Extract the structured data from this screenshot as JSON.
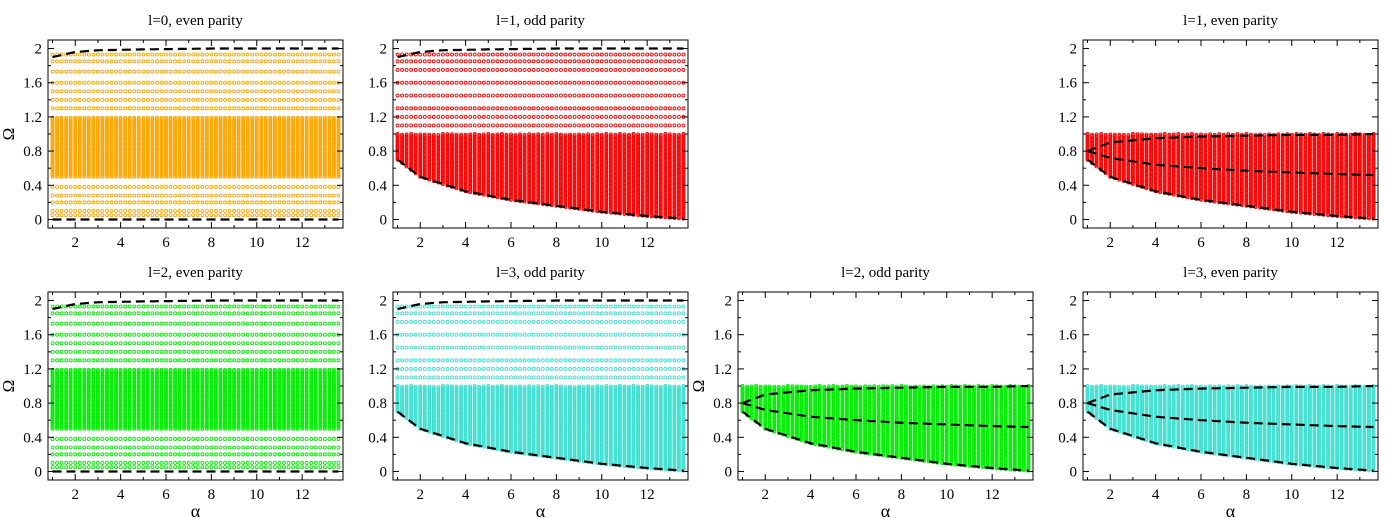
{
  "chart_data": [
    {
      "type": "scatter",
      "title": "l=0, even parity",
      "xlabel": "",
      "ylabel": "Ω",
      "xlim": [
        0.8,
        13.8
      ],
      "ylim": [
        -0.1,
        2.1
      ],
      "xticks": [
        2,
        4,
        6,
        8,
        10,
        12
      ],
      "yticks": [
        0,
        0.4,
        0.8,
        1.2,
        1.6,
        2
      ],
      "yticklabels": [
        "0",
        "0.4",
        "0.8",
        "1.2",
        "1.6",
        "2"
      ],
      "marker_color": "#FFA500",
      "dense_band": {
        "low": 0.5,
        "high": 1.2
      },
      "continuum_levels": [
        0.05,
        0.1,
        0.2,
        0.28,
        0.38,
        1.3,
        1.4,
        1.5,
        1.6,
        1.73,
        1.85,
        1.93
      ],
      "boundary_curves": [
        {
          "style": "dashed",
          "x": [
            1,
            2,
            3,
            5,
            8,
            13.6
          ],
          "y": [
            1.9,
            1.96,
            1.98,
            1.99,
            2.0,
            2.0
          ]
        },
        {
          "style": "dashed",
          "x": [
            1,
            13.6
          ],
          "y": [
            0.0,
            0.0
          ]
        }
      ]
    },
    {
      "type": "scatter",
      "title": "l=1, odd parity",
      "xlabel": "",
      "ylabel": "",
      "xlim": [
        0.8,
        13.8
      ],
      "ylim": [
        -0.1,
        2.1
      ],
      "xticks": [
        2,
        4,
        6,
        8,
        10,
        12
      ],
      "yticks": [
        0,
        0.4,
        0.8,
        1.2,
        1.6,
        2
      ],
      "yticklabels": [
        "0",
        "0.4",
        "0.8",
        "1.2",
        "1.6",
        "2"
      ],
      "marker_color": "#FF0000",
      "dense_band": {
        "low": "lower_curve",
        "high": 1.0
      },
      "continuum_levels": [
        1.1,
        1.2,
        1.3,
        1.45,
        1.6,
        1.75,
        1.85,
        1.93
      ],
      "boundary_curves": [
        {
          "style": "dashed",
          "x": [
            1,
            2,
            3,
            5,
            8,
            13.6
          ],
          "y": [
            1.9,
            1.96,
            1.98,
            1.99,
            2.0,
            2.0
          ]
        },
        {
          "style": "dashed",
          "x": [
            1,
            2,
            4,
            6,
            8,
            10,
            12,
            13.6
          ],
          "y": [
            0.7,
            0.5,
            0.33,
            0.23,
            0.16,
            0.09,
            0.04,
            0.01
          ]
        }
      ]
    },
    {
      "type": "scatter",
      "title": "l=1, even parity",
      "xlabel": "",
      "ylabel": "",
      "xlim": [
        0.8,
        13.8
      ],
      "ylim": [
        -0.1,
        2.1
      ],
      "xticks": [
        2,
        4,
        6,
        8,
        10,
        12
      ],
      "yticks": [
        0,
        0.4,
        0.8,
        1.2,
        1.6,
        2
      ],
      "yticklabels": [
        "0",
        "0.4",
        "0.8",
        "1.2",
        "1.6",
        "2"
      ],
      "marker_color": "#FF0000",
      "dense_band": {
        "low": "lower_curve",
        "high": 1.0
      },
      "continuum_levels": [],
      "boundary_curves": [
        {
          "style": "dashed",
          "x": [
            1,
            2,
            4,
            6,
            8,
            10,
            12,
            13.6
          ],
          "y": [
            0.8,
            0.9,
            0.95,
            0.97,
            0.98,
            0.99,
            0.99,
            1.0
          ]
        },
        {
          "style": "dashed",
          "x": [
            1,
            2,
            4,
            6,
            8,
            10,
            12,
            13.6
          ],
          "y": [
            0.8,
            0.72,
            0.64,
            0.6,
            0.57,
            0.55,
            0.53,
            0.52
          ]
        },
        {
          "style": "dashed",
          "x": [
            1,
            2,
            4,
            6,
            8,
            10,
            12,
            13.6
          ],
          "y": [
            0.7,
            0.5,
            0.33,
            0.23,
            0.16,
            0.09,
            0.04,
            0.01
          ]
        }
      ]
    },
    {
      "type": "scatter",
      "title": "l=2, even parity",
      "xlabel": "α",
      "ylabel": "Ω",
      "xlim": [
        0.8,
        13.8
      ],
      "ylim": [
        -0.1,
        2.1
      ],
      "xticks": [
        2,
        4,
        6,
        8,
        10,
        12
      ],
      "yticks": [
        0,
        0.4,
        0.8,
        1.2,
        1.6,
        2
      ],
      "yticklabels": [
        "0",
        "0.4",
        "0.8",
        "1.2",
        "1.6",
        "2"
      ],
      "marker_color": "#00EE00",
      "dense_band": {
        "low": 0.5,
        "high": 1.2
      },
      "continuum_levels": [
        0.05,
        0.1,
        0.2,
        0.28,
        0.38,
        1.3,
        1.4,
        1.5,
        1.6,
        1.73,
        1.85,
        1.93
      ],
      "boundary_curves": [
        {
          "style": "dashed",
          "x": [
            1,
            2,
            3,
            5,
            8,
            13.6
          ],
          "y": [
            1.9,
            1.96,
            1.98,
            1.99,
            2.0,
            2.0
          ]
        },
        {
          "style": "dashed",
          "x": [
            1,
            13.6
          ],
          "y": [
            0.0,
            0.0
          ]
        }
      ]
    },
    {
      "type": "scatter",
      "title": "l=3, odd parity",
      "xlabel": "α",
      "ylabel": "",
      "xlim": [
        0.8,
        13.8
      ],
      "ylim": [
        -0.1,
        2.1
      ],
      "xticks": [
        2,
        4,
        6,
        8,
        10,
        12
      ],
      "yticks": [
        0,
        0.4,
        0.8,
        1.2,
        1.6,
        2
      ],
      "yticklabels": [
        "0",
        "0.4",
        "0.8",
        "1.2",
        "1.6",
        "2"
      ],
      "marker_color": "#40E0D0",
      "dense_band": {
        "low": "lower_curve",
        "high": 1.0
      },
      "continuum_levels": [
        1.1,
        1.2,
        1.3,
        1.45,
        1.6,
        1.75,
        1.85,
        1.93
      ],
      "boundary_curves": [
        {
          "style": "dashed",
          "x": [
            1,
            2,
            3,
            5,
            8,
            13.6
          ],
          "y": [
            1.9,
            1.96,
            1.98,
            1.99,
            2.0,
            2.0
          ]
        },
        {
          "style": "dashed",
          "x": [
            1,
            2,
            4,
            6,
            8,
            10,
            12,
            13.6
          ],
          "y": [
            0.7,
            0.5,
            0.33,
            0.23,
            0.16,
            0.09,
            0.04,
            0.01
          ]
        }
      ]
    },
    {
      "type": "scatter",
      "title": "l=2, odd parity",
      "xlabel": "α",
      "ylabel": "Ω",
      "xlim": [
        0.8,
        13.8
      ],
      "ylim": [
        -0.1,
        2.1
      ],
      "xticks": [
        2,
        4,
        6,
        8,
        10,
        12
      ],
      "yticks": [
        0,
        0.4,
        0.8,
        1.2,
        1.6,
        2
      ],
      "yticklabels": [
        "0",
        "0.4",
        "0.8",
        "1.2",
        "1.6",
        "2"
      ],
      "marker_color": "#00EE00",
      "dense_band": {
        "low": "lower_curve",
        "high": 1.0
      },
      "continuum_levels": [],
      "boundary_curves": [
        {
          "style": "dashed",
          "x": [
            1,
            2,
            4,
            6,
            8,
            10,
            12,
            13.6
          ],
          "y": [
            0.8,
            0.9,
            0.95,
            0.97,
            0.98,
            0.99,
            0.99,
            1.0
          ]
        },
        {
          "style": "dashed",
          "x": [
            1,
            2,
            4,
            6,
            8,
            10,
            12,
            13.6
          ],
          "y": [
            0.8,
            0.72,
            0.64,
            0.6,
            0.57,
            0.55,
            0.53,
            0.52
          ]
        },
        {
          "style": "dashed",
          "x": [
            1,
            2,
            4,
            6,
            8,
            10,
            12,
            13.6
          ],
          "y": [
            0.7,
            0.5,
            0.33,
            0.23,
            0.16,
            0.09,
            0.04,
            0.01
          ]
        }
      ]
    },
    {
      "type": "scatter",
      "title": "l=3, even parity",
      "xlabel": "α",
      "ylabel": "",
      "xlim": [
        0.8,
        13.8
      ],
      "ylim": [
        -0.1,
        2.1
      ],
      "xticks": [
        2,
        4,
        6,
        8,
        10,
        12
      ],
      "yticks": [
        0,
        0.4,
        0.8,
        1.2,
        1.6,
        2
      ],
      "yticklabels": [
        "0",
        "0.4",
        "0.8",
        "1.2",
        "1.6",
        "2"
      ],
      "marker_color": "#40E0D0",
      "dense_band": {
        "low": "lower_curve",
        "high": 1.0
      },
      "continuum_levels": [],
      "boundary_curves": [
        {
          "style": "dashed",
          "x": [
            1,
            2,
            4,
            6,
            8,
            10,
            12,
            13.6
          ],
          "y": [
            0.8,
            0.9,
            0.95,
            0.97,
            0.98,
            0.99,
            0.99,
            1.0
          ]
        },
        {
          "style": "dashed",
          "x": [
            1,
            2,
            4,
            6,
            8,
            10,
            12,
            13.6
          ],
          "y": [
            0.8,
            0.72,
            0.64,
            0.6,
            0.57,
            0.55,
            0.53,
            0.52
          ]
        },
        {
          "style": "dashed",
          "x": [
            1,
            2,
            4,
            6,
            8,
            10,
            12,
            13.6
          ],
          "y": [
            0.7,
            0.5,
            0.33,
            0.23,
            0.16,
            0.09,
            0.04,
            0.01
          ]
        }
      ]
    }
  ]
}
